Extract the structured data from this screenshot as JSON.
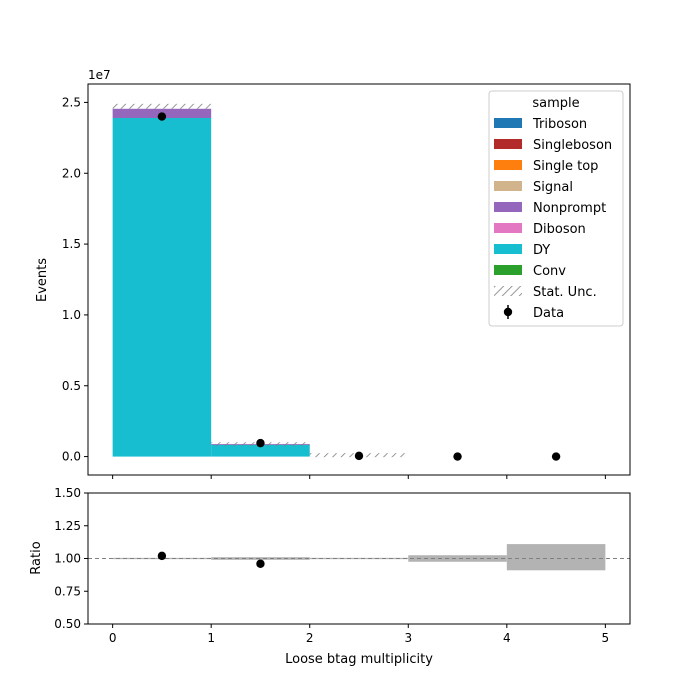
{
  "chart_data": {
    "type": "bar",
    "bins": [
      [
        0,
        1
      ],
      [
        1,
        2
      ],
      [
        2,
        3
      ],
      [
        3,
        4
      ],
      [
        4,
        5
      ]
    ],
    "x_ticks": [
      0,
      1,
      2,
      3,
      4,
      5
    ],
    "xlabel": "Loose btag multiplicity",
    "xlim": [
      -0.25,
      5.25
    ],
    "main": {
      "ylabel": "Events",
      "ylim": [
        -0.13,
        2.63
      ],
      "y_ticks": [
        0.0,
        0.5,
        1.0,
        1.5,
        2.0,
        2.5
      ],
      "y_tick_labels": [
        "0.0",
        "0.5",
        "1.0",
        "1.5",
        "2.0",
        "2.5"
      ],
      "offset_text": "1e7",
      "stack_order_bottom_to_top": [
        "Conv",
        "DY",
        "Diboson",
        "Nonprompt",
        "Signal",
        "Single top",
        "Singleboson",
        "Triboson"
      ],
      "series": [
        {
          "name": "Conv",
          "color": "#2ca02c",
          "values": [
            0.0,
            0.0,
            0.0,
            0.0,
            0.0
          ]
        },
        {
          "name": "DY",
          "color": "#17becf",
          "values": [
            2.39,
            0.083,
            0.0,
            0.0,
            0.0
          ]
        },
        {
          "name": "Diboson",
          "color": "#e377c2",
          "values": [
            0.0,
            0.0,
            0.0,
            0.0,
            0.0
          ]
        },
        {
          "name": "Nonprompt",
          "color": "#9467bd",
          "values": [
            0.065,
            0.006,
            0.0,
            0.0,
            0.0
          ]
        },
        {
          "name": "Signal",
          "color": "#d2b48c",
          "values": [
            0.0,
            0.0,
            0.0,
            0.0,
            0.0
          ]
        },
        {
          "name": "Single top",
          "color": "#ff7f0e",
          "values": [
            0.0,
            0.0,
            0.0,
            0.0,
            0.0
          ]
        },
        {
          "name": "Singleboson",
          "color": "#b22a2a",
          "values": [
            0.0,
            0.0,
            0.0,
            0.0,
            0.0
          ]
        },
        {
          "name": "Triboson",
          "color": "#1f77b4",
          "values": [
            0.0,
            0.0,
            0.0,
            0.0,
            0.0
          ]
        }
      ],
      "stat_unc": [
        [
          2.455,
          2.49
        ],
        [
          0.083,
          0.092
        ],
        [
          0.0,
          0.02
        ],
        [
          0.0,
          0.0
        ],
        [
          0.0,
          0.0
        ]
      ],
      "data": {
        "name": "Data",
        "x": [
          0.5,
          1.5,
          2.5,
          3.5,
          4.5
        ],
        "values": [
          2.4,
          0.095,
          0.005,
          0.0,
          0.0
        ]
      }
    },
    "ratio": {
      "ylabel": "Ratio",
      "ylim": [
        0.5,
        1.5
      ],
      "y_ticks": [
        0.5,
        0.75,
        1.0,
        1.25,
        1.5
      ],
      "y_tick_labels": [
        "0.50",
        "0.75",
        "1.00",
        "1.25",
        "1.50"
      ],
      "reference_line": 1.0,
      "unc_bands": [
        [
          0.995,
          1.005
        ],
        [
          0.99,
          1.01
        ],
        [
          0.995,
          1.005
        ],
        [
          0.975,
          1.025
        ],
        [
          0.91,
          1.11
        ]
      ],
      "points": {
        "x": [
          0.5,
          1.5
        ],
        "values": [
          1.02,
          0.96
        ]
      }
    },
    "legend": {
      "title": "sample",
      "placement": "top-right",
      "entries": [
        {
          "label": "Triboson",
          "color": "#1f77b4",
          "kind": "patch"
        },
        {
          "label": "Singleboson",
          "color": "#b22a2a",
          "kind": "patch"
        },
        {
          "label": "Single top",
          "color": "#ff7f0e",
          "kind": "patch"
        },
        {
          "label": "Signal",
          "color": "#d2b48c",
          "kind": "patch"
        },
        {
          "label": "Nonprompt",
          "color": "#9467bd",
          "kind": "patch"
        },
        {
          "label": "Diboson",
          "color": "#e377c2",
          "kind": "patch"
        },
        {
          "label": "DY",
          "color": "#17becf",
          "kind": "patch"
        },
        {
          "label": "Conv",
          "color": "#2ca02c",
          "kind": "patch"
        },
        {
          "label": "Stat. Unc.",
          "color": "#808080",
          "kind": "hatch"
        },
        {
          "label": "Data",
          "color": "#000000",
          "kind": "marker"
        }
      ]
    },
    "colors": {
      "unc_hatch": "#808080",
      "ratio_band": "#b3b3b3",
      "reference_line": "#808080",
      "data": "#000000"
    }
  }
}
